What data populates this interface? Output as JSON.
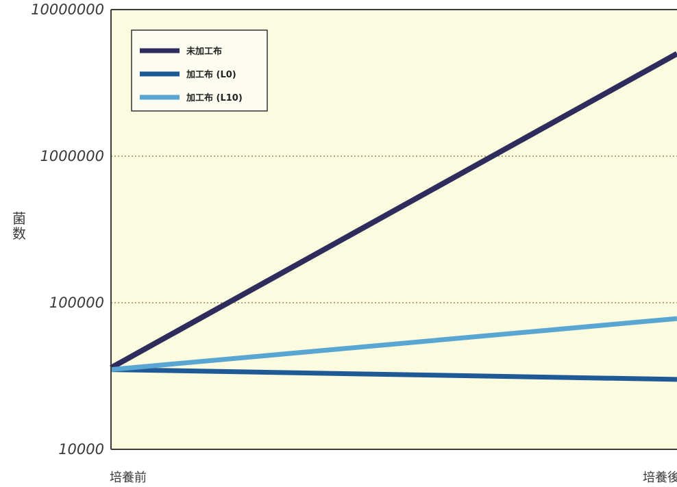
{
  "chart_data": {
    "type": "line",
    "title": "",
    "ylabel": "菌数",
    "xlabel": "",
    "y_scale": "log",
    "ylim": [
      10000,
      10000000
    ],
    "y_ticks": [
      "10000",
      "100000",
      "1000000",
      "10000000"
    ],
    "categories": [
      "培養前",
      "培養後"
    ],
    "grid": "horizontal-dotted",
    "legend_position": "top-left",
    "background": "#fbfbe0",
    "series": [
      {
        "name": "未加工布",
        "values": [
          36000,
          5000000
        ],
        "color": "#2e2c5c"
      },
      {
        "name": "加工布 (L0)",
        "values": [
          35000,
          30000
        ],
        "color": "#1f5a96"
      },
      {
        "name": "加工布 (L10)",
        "values": [
          35000,
          78000
        ],
        "color": "#5aa6d2"
      }
    ]
  }
}
